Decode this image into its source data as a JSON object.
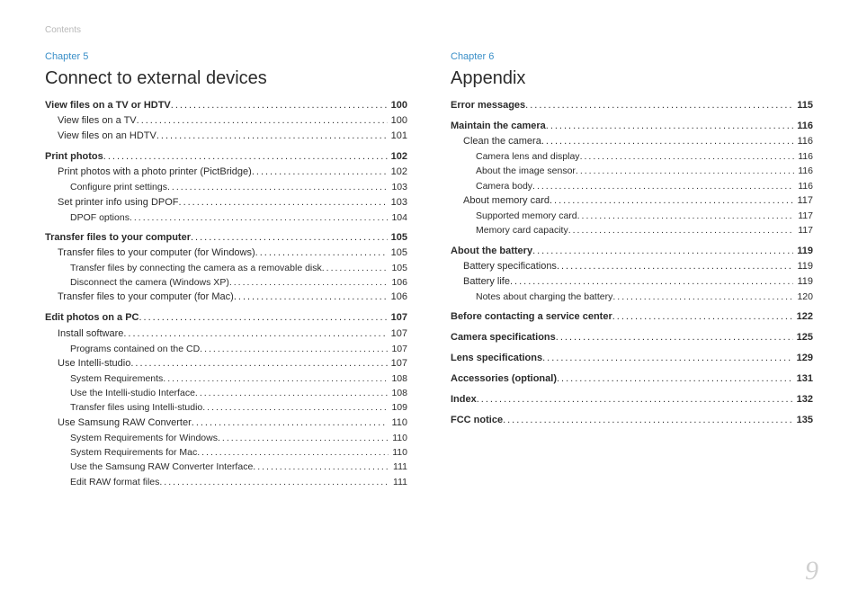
{
  "doc": {
    "header_label": "Contents",
    "page_number": "9"
  },
  "left": {
    "chapter_label": "Chapter 5",
    "chapter_title": "Connect to external devices",
    "entries": [
      {
        "level": 0,
        "label": "View files on a TV or HDTV",
        "page": "100"
      },
      {
        "level": 1,
        "label": "View files on a TV",
        "page": "100"
      },
      {
        "level": 1,
        "label": "View files on an HDTV",
        "page": "101"
      },
      {
        "level": 0,
        "label": "Print photos",
        "page": "102"
      },
      {
        "level": 1,
        "label": "Print photos with a photo printer (PictBridge)",
        "page": "102"
      },
      {
        "level": 2,
        "label": "Configure print settings",
        "page": "103"
      },
      {
        "level": 1,
        "label": "Set printer info using DPOF",
        "page": "103"
      },
      {
        "level": 2,
        "label": "DPOF options",
        "page": "104"
      },
      {
        "level": 0,
        "label": "Transfer files to your computer",
        "page": "105"
      },
      {
        "level": 1,
        "label": "Transfer files to your computer (for Windows)",
        "page": "105"
      },
      {
        "level": 2,
        "label": "Transfer files by connecting the camera as a removable disk",
        "page": "105"
      },
      {
        "level": 2,
        "label": "Disconnect the camera (Windows XP)",
        "page": "106"
      },
      {
        "level": 1,
        "label": "Transfer files to your computer (for Mac)",
        "page": "106"
      },
      {
        "level": 0,
        "label": "Edit photos on a PC",
        "page": "107"
      },
      {
        "level": 1,
        "label": "Install software",
        "page": "107"
      },
      {
        "level": 2,
        "label": "Programs contained on the CD",
        "page": "107"
      },
      {
        "level": 1,
        "label": "Use Intelli-studio",
        "page": "107"
      },
      {
        "level": 2,
        "label": "System Requirements",
        "page": "108"
      },
      {
        "level": 2,
        "label": "Use the Intelli-studio Interface",
        "page": "108"
      },
      {
        "level": 2,
        "label": "Transfer files using Intelli-studio",
        "page": "109"
      },
      {
        "level": 1,
        "label": "Use Samsung RAW Converter",
        "page": "110"
      },
      {
        "level": 2,
        "label": "System Requirements for Windows",
        "page": "110"
      },
      {
        "level": 2,
        "label": "System Requirements for Mac",
        "page": "110"
      },
      {
        "level": 2,
        "label": "Use the Samsung RAW Converter Interface",
        "page": "111"
      },
      {
        "level": 2,
        "label": "Edit RAW format files",
        "page": "111"
      }
    ]
  },
  "right": {
    "chapter_label": "Chapter 6",
    "chapter_title": "Appendix",
    "entries": [
      {
        "level": 0,
        "label": "Error messages",
        "page": "115"
      },
      {
        "level": 0,
        "label": "Maintain the camera",
        "page": "116"
      },
      {
        "level": 1,
        "label": "Clean the camera",
        "page": "116"
      },
      {
        "level": 2,
        "label": "Camera lens and display",
        "page": "116"
      },
      {
        "level": 2,
        "label": "About the image sensor",
        "page": "116"
      },
      {
        "level": 2,
        "label": "Camera body",
        "page": "116"
      },
      {
        "level": 1,
        "label": "About memory card",
        "page": "117"
      },
      {
        "level": 2,
        "label": "Supported memory card",
        "page": "117"
      },
      {
        "level": 2,
        "label": "Memory card capacity",
        "page": "117"
      },
      {
        "level": 0,
        "label": "About the battery",
        "page": "119"
      },
      {
        "level": 1,
        "label": "Battery specifications",
        "page": "119"
      },
      {
        "level": 1,
        "label": "Battery life",
        "page": "119"
      },
      {
        "level": 2,
        "label": "Notes about charging the battery",
        "page": "120"
      },
      {
        "level": 0,
        "label": "Before contacting a service center",
        "page": "122"
      },
      {
        "level": 0,
        "label": "Camera specifications",
        "page": "125"
      },
      {
        "level": 0,
        "label": "Lens specifications",
        "page": "129"
      },
      {
        "level": 0,
        "label": "Accessories (optional)",
        "page": "131"
      },
      {
        "level": 0,
        "label": "Index",
        "page": "132"
      },
      {
        "level": 0,
        "label": "FCC notice",
        "page": "135"
      }
    ]
  }
}
